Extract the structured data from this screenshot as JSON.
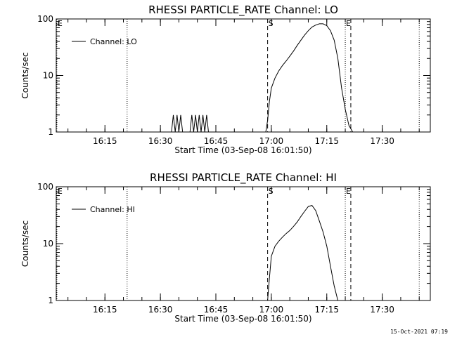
{
  "footer": {
    "timestamp": "15-Oct-2021 07:19"
  },
  "chart_data": [
    {
      "type": "line",
      "title": "RHESSI PARTICLE_RATE Channel: LO",
      "xlabel": "Start Time (03-Sep-08 16:01:50)",
      "ylabel": "Counts/sec",
      "yscale": "log",
      "ylim": [
        1,
        100
      ],
      "yticks": [
        {
          "value": 1,
          "label": "1"
        },
        {
          "value": 10,
          "label": "10"
        },
        {
          "value": 100,
          "label": "100"
        }
      ],
      "xlim": [
        "16:01:50",
        "17:43:00"
      ],
      "xticks": [
        "16:15",
        "16:30",
        "16:45",
        "17:00",
        "17:15",
        "17:30"
      ],
      "legend": "top-left",
      "series": [
        {
          "name": "Channel: LO",
          "x": [
            "16:33:00",
            "16:33:30",
            "16:34:00",
            "16:34:30",
            "16:35:00",
            "16:35:30",
            "16:36:00",
            "16:36:30",
            "16:38:00",
            "16:38:30",
            "16:39:00",
            "16:39:30",
            "16:40:00",
            "16:40:30",
            "16:41:00",
            "16:41:30",
            "16:42:00",
            "16:42:30",
            "16:43:00",
            "16:58:30",
            "16:59:00",
            "16:59:30",
            "17:00:00",
            "17:01:00",
            "17:02:00",
            "17:03:00",
            "17:04:00",
            "17:05:00",
            "17:06:00",
            "17:07:00",
            "17:08:00",
            "17:09:00",
            "17:10:00",
            "17:11:00",
            "17:12:00",
            "17:13:00",
            "17:14:00",
            "17:15:00",
            "17:16:00",
            "17:17:00",
            "17:18:00",
            "17:19:00",
            "17:20:00",
            "17:21:00",
            "17:22:00"
          ],
          "y": [
            1,
            2,
            1,
            2,
            1,
            2,
            1,
            1,
            1,
            2,
            1,
            2,
            1,
            2,
            1,
            2,
            1,
            2,
            1,
            1,
            1.6,
            3.5,
            6,
            9,
            12,
            15,
            18,
            22,
            27,
            34,
            42,
            52,
            62,
            72,
            78,
            82,
            82,
            76,
            62,
            42,
            20,
            6,
            2.5,
            1.3,
            1
          ]
        }
      ],
      "markers": [
        {
          "kind": "E",
          "time": "16:02:00",
          "style": "dotted"
        },
        {
          "kind": "",
          "time": "16:21:00",
          "style": "dotted"
        },
        {
          "kind": "S",
          "time": "16:59:00",
          "style": "dashed"
        },
        {
          "kind": "E",
          "time": "17:20:00",
          "style": "dotted"
        },
        {
          "kind": "",
          "time": "17:21:30",
          "style": "dashed"
        },
        {
          "kind": "",
          "time": "17:40:00",
          "style": "dotted"
        }
      ]
    },
    {
      "type": "line",
      "title": "RHESSI PARTICLE_RATE Channel: HI",
      "xlabel": "Start Time (03-Sep-08 16:01:50)",
      "ylabel": "Counts/sec",
      "yscale": "log",
      "ylim": [
        1,
        100
      ],
      "yticks": [
        {
          "value": 1,
          "label": "1"
        },
        {
          "value": 10,
          "label": "10"
        },
        {
          "value": 100,
          "label": "100"
        }
      ],
      "xlim": [
        "16:01:50",
        "17:43:00"
      ],
      "xticks": [
        "16:15",
        "16:30",
        "16:45",
        "17:00",
        "17:15",
        "17:30"
      ],
      "legend": "top-left",
      "series": [
        {
          "name": "Channel: HI",
          "x": [
            "16:59:00",
            "16:59:30",
            "17:00:00",
            "17:01:00",
            "17:02:00",
            "17:03:00",
            "17:04:00",
            "17:05:00",
            "17:06:00",
            "17:07:00",
            "17:08:00",
            "17:09:00",
            "17:10:00",
            "17:11:00",
            "17:12:00",
            "17:13:00",
            "17:14:00",
            "17:15:00",
            "17:16:00",
            "17:17:00",
            "17:18:00"
          ],
          "y": [
            1,
            2.5,
            6,
            9,
            11,
            13,
            15,
            17,
            20,
            24,
            30,
            37,
            45,
            47,
            38,
            25,
            16,
            9,
            4,
            1.8,
            1
          ]
        }
      ],
      "markers": [
        {
          "kind": "E",
          "time": "16:02:00",
          "style": "dotted"
        },
        {
          "kind": "",
          "time": "16:21:00",
          "style": "dotted"
        },
        {
          "kind": "S",
          "time": "16:59:00",
          "style": "dashed"
        },
        {
          "kind": "E",
          "time": "17:20:00",
          "style": "dotted"
        },
        {
          "kind": "",
          "time": "17:21:30",
          "style": "dashed"
        },
        {
          "kind": "",
          "time": "17:40:00",
          "style": "dotted"
        }
      ]
    }
  ]
}
